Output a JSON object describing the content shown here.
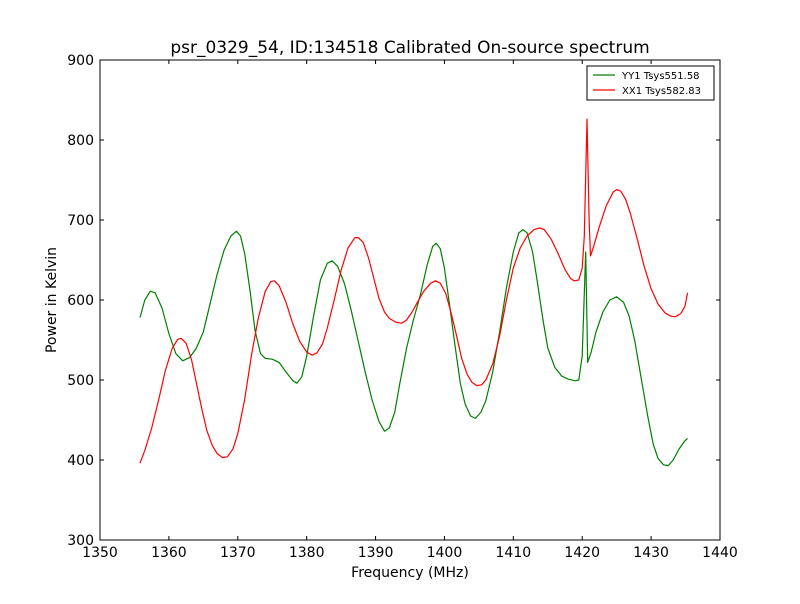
{
  "chart_data": {
    "type": "line",
    "title": "psr_0329_54, ID:134518 Calibrated On-source spectrum",
    "xlabel": "Frequency (MHz)",
    "ylabel": "Power in Kelvin",
    "xlim": [
      1350,
      1440
    ],
    "ylim": [
      300,
      900
    ],
    "x_ticks": [
      1350,
      1360,
      1370,
      1380,
      1390,
      1400,
      1410,
      1420,
      1430,
      1440
    ],
    "y_ticks": [
      300,
      400,
      500,
      600,
      700,
      800,
      900
    ],
    "grid": false,
    "legend_position": "top-right",
    "series": [
      {
        "name": "YY1 Tsys551.58",
        "color": "#008000",
        "points": [
          [
            1355.8,
            578
          ],
          [
            1356.5,
            600
          ],
          [
            1357.3,
            611
          ],
          [
            1358.0,
            609
          ],
          [
            1359.0,
            590
          ],
          [
            1360.0,
            558
          ],
          [
            1361.0,
            533
          ],
          [
            1362.0,
            524
          ],
          [
            1363.0,
            528
          ],
          [
            1364.0,
            540
          ],
          [
            1365.0,
            560
          ],
          [
            1366.0,
            596
          ],
          [
            1367.0,
            632
          ],
          [
            1368.0,
            662
          ],
          [
            1369.0,
            680
          ],
          [
            1369.8,
            686
          ],
          [
            1370.4,
            680
          ],
          [
            1371.0,
            658
          ],
          [
            1371.8,
            610
          ],
          [
            1372.5,
            562
          ],
          [
            1373.3,
            533
          ],
          [
            1374.0,
            527
          ],
          [
            1375.0,
            526
          ],
          [
            1376.0,
            522
          ],
          [
            1377.0,
            510
          ],
          [
            1378.0,
            499
          ],
          [
            1378.6,
            496
          ],
          [
            1379.3,
            504
          ],
          [
            1380.0,
            530
          ],
          [
            1381.0,
            580
          ],
          [
            1382.0,
            625
          ],
          [
            1383.0,
            646
          ],
          [
            1383.7,
            649
          ],
          [
            1384.5,
            642
          ],
          [
            1385.5,
            620
          ],
          [
            1386.5,
            586
          ],
          [
            1387.5,
            548
          ],
          [
            1388.5,
            510
          ],
          [
            1389.5,
            475
          ],
          [
            1390.5,
            448
          ],
          [
            1391.3,
            436
          ],
          [
            1392.0,
            440
          ],
          [
            1392.8,
            460
          ],
          [
            1393.5,
            495
          ],
          [
            1394.5,
            540
          ],
          [
            1395.5,
            575
          ],
          [
            1396.5,
            606
          ],
          [
            1397.5,
            644
          ],
          [
            1398.3,
            667
          ],
          [
            1398.8,
            671
          ],
          [
            1399.4,
            664
          ],
          [
            1400.0,
            640
          ],
          [
            1400.8,
            590
          ],
          [
            1401.5,
            545
          ],
          [
            1402.3,
            496
          ],
          [
            1403.0,
            470
          ],
          [
            1403.8,
            455
          ],
          [
            1404.5,
            452
          ],
          [
            1405.3,
            460
          ],
          [
            1406.0,
            474
          ],
          [
            1407.0,
            510
          ],
          [
            1408.0,
            560
          ],
          [
            1409.0,
            615
          ],
          [
            1410.0,
            660
          ],
          [
            1410.8,
            684
          ],
          [
            1411.4,
            688
          ],
          [
            1412.0,
            684
          ],
          [
            1412.8,
            660
          ],
          [
            1413.5,
            622
          ],
          [
            1414.3,
            575
          ],
          [
            1415.0,
            540
          ],
          [
            1416.0,
            516
          ],
          [
            1417.0,
            505
          ],
          [
            1418.0,
            501
          ],
          [
            1419.0,
            499
          ],
          [
            1419.5,
            500
          ],
          [
            1420.0,
            530
          ],
          [
            1420.5,
            660
          ],
          [
            1420.8,
            522
          ],
          [
            1421.3,
            535
          ],
          [
            1422.0,
            560
          ],
          [
            1423.0,
            585
          ],
          [
            1424.0,
            600
          ],
          [
            1425.0,
            604
          ],
          [
            1426.0,
            597
          ],
          [
            1426.8,
            580
          ],
          [
            1427.6,
            550
          ],
          [
            1428.5,
            505
          ],
          [
            1429.5,
            455
          ],
          [
            1430.3,
            420
          ],
          [
            1431.0,
            402
          ],
          [
            1431.8,
            394
          ],
          [
            1432.5,
            393
          ],
          [
            1433.2,
            400
          ],
          [
            1434.0,
            413
          ],
          [
            1434.8,
            423
          ],
          [
            1435.3,
            427
          ]
        ]
      },
      {
        "name": "XX1 Tsys582.83",
        "color": "#ff0000",
        "points": [
          [
            1355.8,
            396
          ],
          [
            1356.5,
            412
          ],
          [
            1357.5,
            440
          ],
          [
            1358.5,
            475
          ],
          [
            1359.5,
            512
          ],
          [
            1360.5,
            540
          ],
          [
            1361.3,
            551
          ],
          [
            1361.8,
            552
          ],
          [
            1362.5,
            546
          ],
          [
            1363.3,
            525
          ],
          [
            1364.0,
            496
          ],
          [
            1364.8,
            463
          ],
          [
            1365.5,
            437
          ],
          [
            1366.3,
            418
          ],
          [
            1367.0,
            408
          ],
          [
            1367.8,
            403
          ],
          [
            1368.5,
            404
          ],
          [
            1369.3,
            414
          ],
          [
            1370.0,
            433
          ],
          [
            1371.0,
            476
          ],
          [
            1372.0,
            532
          ],
          [
            1373.0,
            578
          ],
          [
            1374.0,
            611
          ],
          [
            1374.8,
            623
          ],
          [
            1375.3,
            624
          ],
          [
            1376.0,
            618
          ],
          [
            1377.0,
            597
          ],
          [
            1378.0,
            570
          ],
          [
            1379.0,
            548
          ],
          [
            1380.0,
            535
          ],
          [
            1380.8,
            531
          ],
          [
            1381.5,
            534
          ],
          [
            1382.3,
            545
          ],
          [
            1383.0,
            565
          ],
          [
            1384.0,
            600
          ],
          [
            1385.0,
            637
          ],
          [
            1386.0,
            665
          ],
          [
            1387.0,
            678
          ],
          [
            1387.5,
            678
          ],
          [
            1388.2,
            672
          ],
          [
            1389.0,
            652
          ],
          [
            1389.8,
            625
          ],
          [
            1390.5,
            602
          ],
          [
            1391.3,
            585
          ],
          [
            1392.0,
            577
          ],
          [
            1393.0,
            572
          ],
          [
            1393.8,
            571
          ],
          [
            1394.5,
            575
          ],
          [
            1395.3,
            585
          ],
          [
            1396.0,
            596
          ],
          [
            1397.0,
            611
          ],
          [
            1398.0,
            621
          ],
          [
            1398.7,
            624
          ],
          [
            1399.4,
            621
          ],
          [
            1400.2,
            608
          ],
          [
            1401.0,
            583
          ],
          [
            1401.8,
            554
          ],
          [
            1402.5,
            527
          ],
          [
            1403.3,
            507
          ],
          [
            1404.0,
            497
          ],
          [
            1404.7,
            493
          ],
          [
            1405.4,
            494
          ],
          [
            1406.0,
            500
          ],
          [
            1407.0,
            520
          ],
          [
            1408.0,
            555
          ],
          [
            1409.0,
            600
          ],
          [
            1410.0,
            640
          ],
          [
            1411.0,
            665
          ],
          [
            1412.0,
            680
          ],
          [
            1413.0,
            688
          ],
          [
            1413.8,
            690
          ],
          [
            1414.5,
            688
          ],
          [
            1415.5,
            676
          ],
          [
            1416.5,
            658
          ],
          [
            1417.5,
            638
          ],
          [
            1418.3,
            627
          ],
          [
            1418.8,
            624
          ],
          [
            1419.5,
            625
          ],
          [
            1420.0,
            640
          ],
          [
            1420.3,
            680
          ],
          [
            1420.7,
            826
          ],
          [
            1421.0,
            700
          ],
          [
            1421.2,
            655
          ],
          [
            1421.7,
            668
          ],
          [
            1422.5,
            692
          ],
          [
            1423.5,
            718
          ],
          [
            1424.5,
            735
          ],
          [
            1425.0,
            738
          ],
          [
            1425.6,
            736
          ],
          [
            1426.3,
            726
          ],
          [
            1427.0,
            708
          ],
          [
            1428.0,
            676
          ],
          [
            1429.0,
            642
          ],
          [
            1430.0,
            614
          ],
          [
            1431.0,
            595
          ],
          [
            1432.0,
            584
          ],
          [
            1432.8,
            580
          ],
          [
            1433.5,
            579
          ],
          [
            1434.3,
            583
          ],
          [
            1434.9,
            592
          ],
          [
            1435.3,
            609
          ]
        ]
      }
    ]
  }
}
